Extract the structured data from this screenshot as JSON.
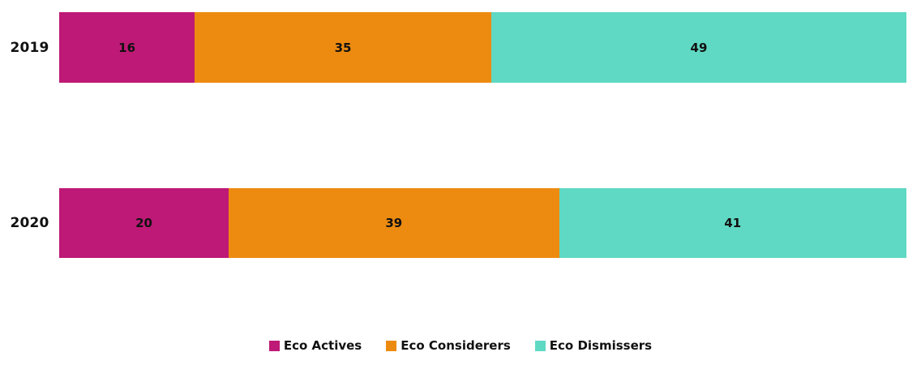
{
  "background": "#FFFFFF",
  "text_color": "#111111",
  "chart_data": {
    "type": "bar",
    "variant": "horizontal-stacked",
    "title": "",
    "xlabel": "",
    "ylabel": "",
    "grid": false,
    "axes_visible": false,
    "xlim": [
      0,
      100
    ],
    "value_labels": "inside-center",
    "legend_position": "bottom-center",
    "categories": [
      "2019",
      "2020"
    ],
    "series": [
      {
        "name": "Eco Actives",
        "color": "#BE1976",
        "values": [
          16,
          20
        ]
      },
      {
        "name": "Eco Considerers",
        "color": "#ED8B11",
        "values": [
          35,
          39
        ]
      },
      {
        "name": "Eco Dismissers",
        "color": "#5FD9C3",
        "values": [
          49,
          41
        ]
      }
    ]
  }
}
